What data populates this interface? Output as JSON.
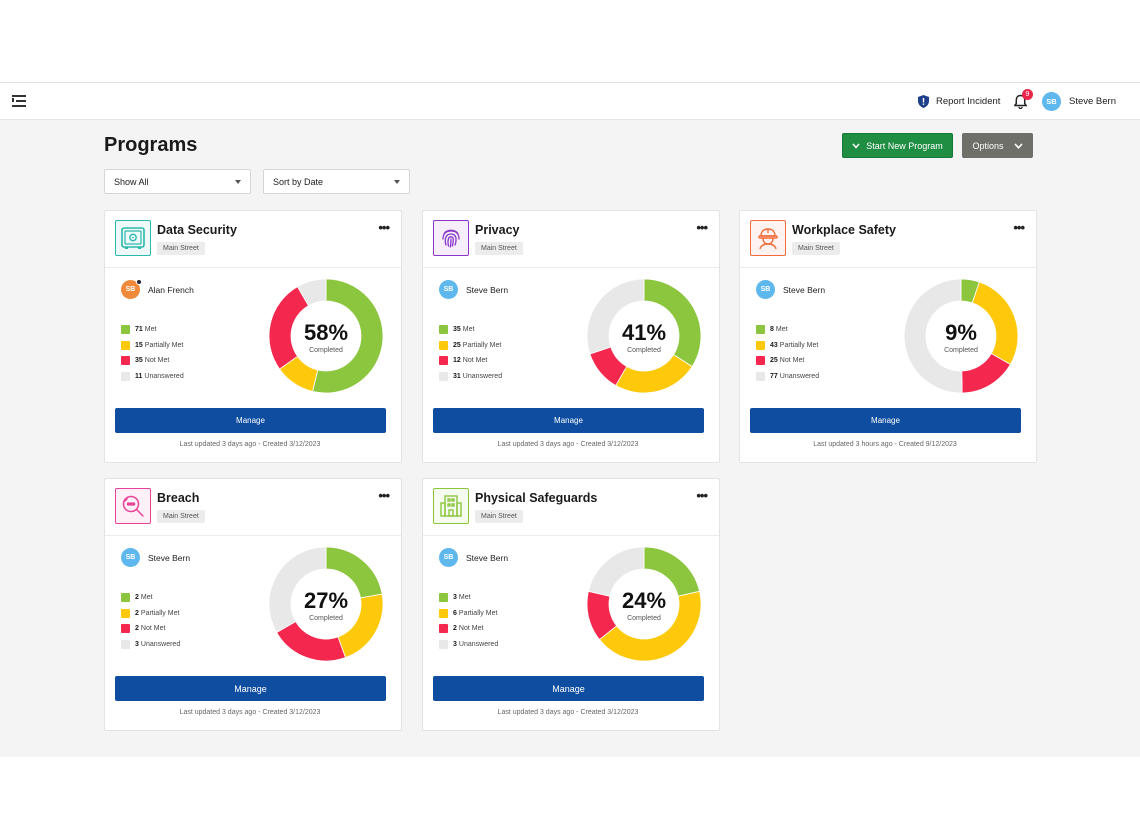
{
  "header": {
    "report_label": "Report Incident",
    "notifications_count": "9",
    "user": {
      "initials": "SB",
      "name": "Steve Bern"
    }
  },
  "page": {
    "title": "Programs",
    "start_button": "Start New Program",
    "options_button": "Options",
    "filter_value": "Show All",
    "sort_value": "Sort by Date"
  },
  "colors": {
    "met": "#8cc63f",
    "partial": "#ffc90b",
    "notmet": "#f4284e",
    "unanswered": "#e8e8e8",
    "accent": "#0e4da0",
    "start": "#1f8e43"
  },
  "legend_labels": [
    "Met",
    "Partially Met",
    "Not Met",
    "Unanswered"
  ],
  "cards": [
    {
      "title": "Data Security",
      "tag": "Main Street",
      "icon": "safe-icon",
      "icon_color": "#2bb8ad",
      "owner_initials": "SB",
      "owner_name": "Alan French",
      "owner_avatar": "orange",
      "counts": [
        71,
        15,
        35,
        11
      ],
      "percent": "58%",
      "completed_label": "Completed",
      "manage_label": "Manage",
      "updated": "Last updated 3 days ago - Created 3/12/2023"
    },
    {
      "title": "Privacy",
      "tag": "Main Street",
      "icon": "fingerprint-icon",
      "icon_color": "#8a35c9",
      "owner_initials": "SB",
      "owner_name": "Steve Bern",
      "owner_avatar": "blue",
      "counts": [
        35,
        25,
        12,
        31
      ],
      "percent": "41%",
      "completed_label": "Completed",
      "manage_label": "Manage",
      "updated": "Last updated 3 days ago - Created 3/12/2023"
    },
    {
      "title": "Workplace Safety",
      "tag": "Main Street",
      "icon": "worker-icon",
      "icon_color": "#f26b3a",
      "owner_initials": "SB",
      "owner_name": "Steve Bern",
      "owner_avatar": "blue",
      "counts": [
        8,
        43,
        25,
        77
      ],
      "percent": "9%",
      "completed_label": "Completed",
      "manage_label": "Manage",
      "updated": "Last updated 3 hours ago - Created 9/12/2023"
    },
    {
      "title": "Breach",
      "tag": "Main Street",
      "icon": "magnifier-icon",
      "icon_color": "#e8439a",
      "owner_initials": "SB",
      "owner_name": "Steve Bern",
      "owner_avatar": "blue",
      "counts": [
        2,
        2,
        2,
        3
      ],
      "percent": "27%",
      "completed_label": "Completed",
      "manage_label": "Manage",
      "updated": "Last updated 3 days ago - Created 3/12/2023"
    },
    {
      "title": "Physical Safeguards",
      "tag": "Main Street",
      "icon": "building-icon",
      "icon_color": "#8cc63f",
      "owner_initials": "SB",
      "owner_name": "Steve Bern",
      "owner_avatar": "blue",
      "counts": [
        3,
        6,
        2,
        3
      ],
      "percent": "24%",
      "completed_label": "Completed",
      "manage_label": "Manage",
      "updated": "Last updated 3 days ago - Created 3/12/2023"
    }
  ]
}
